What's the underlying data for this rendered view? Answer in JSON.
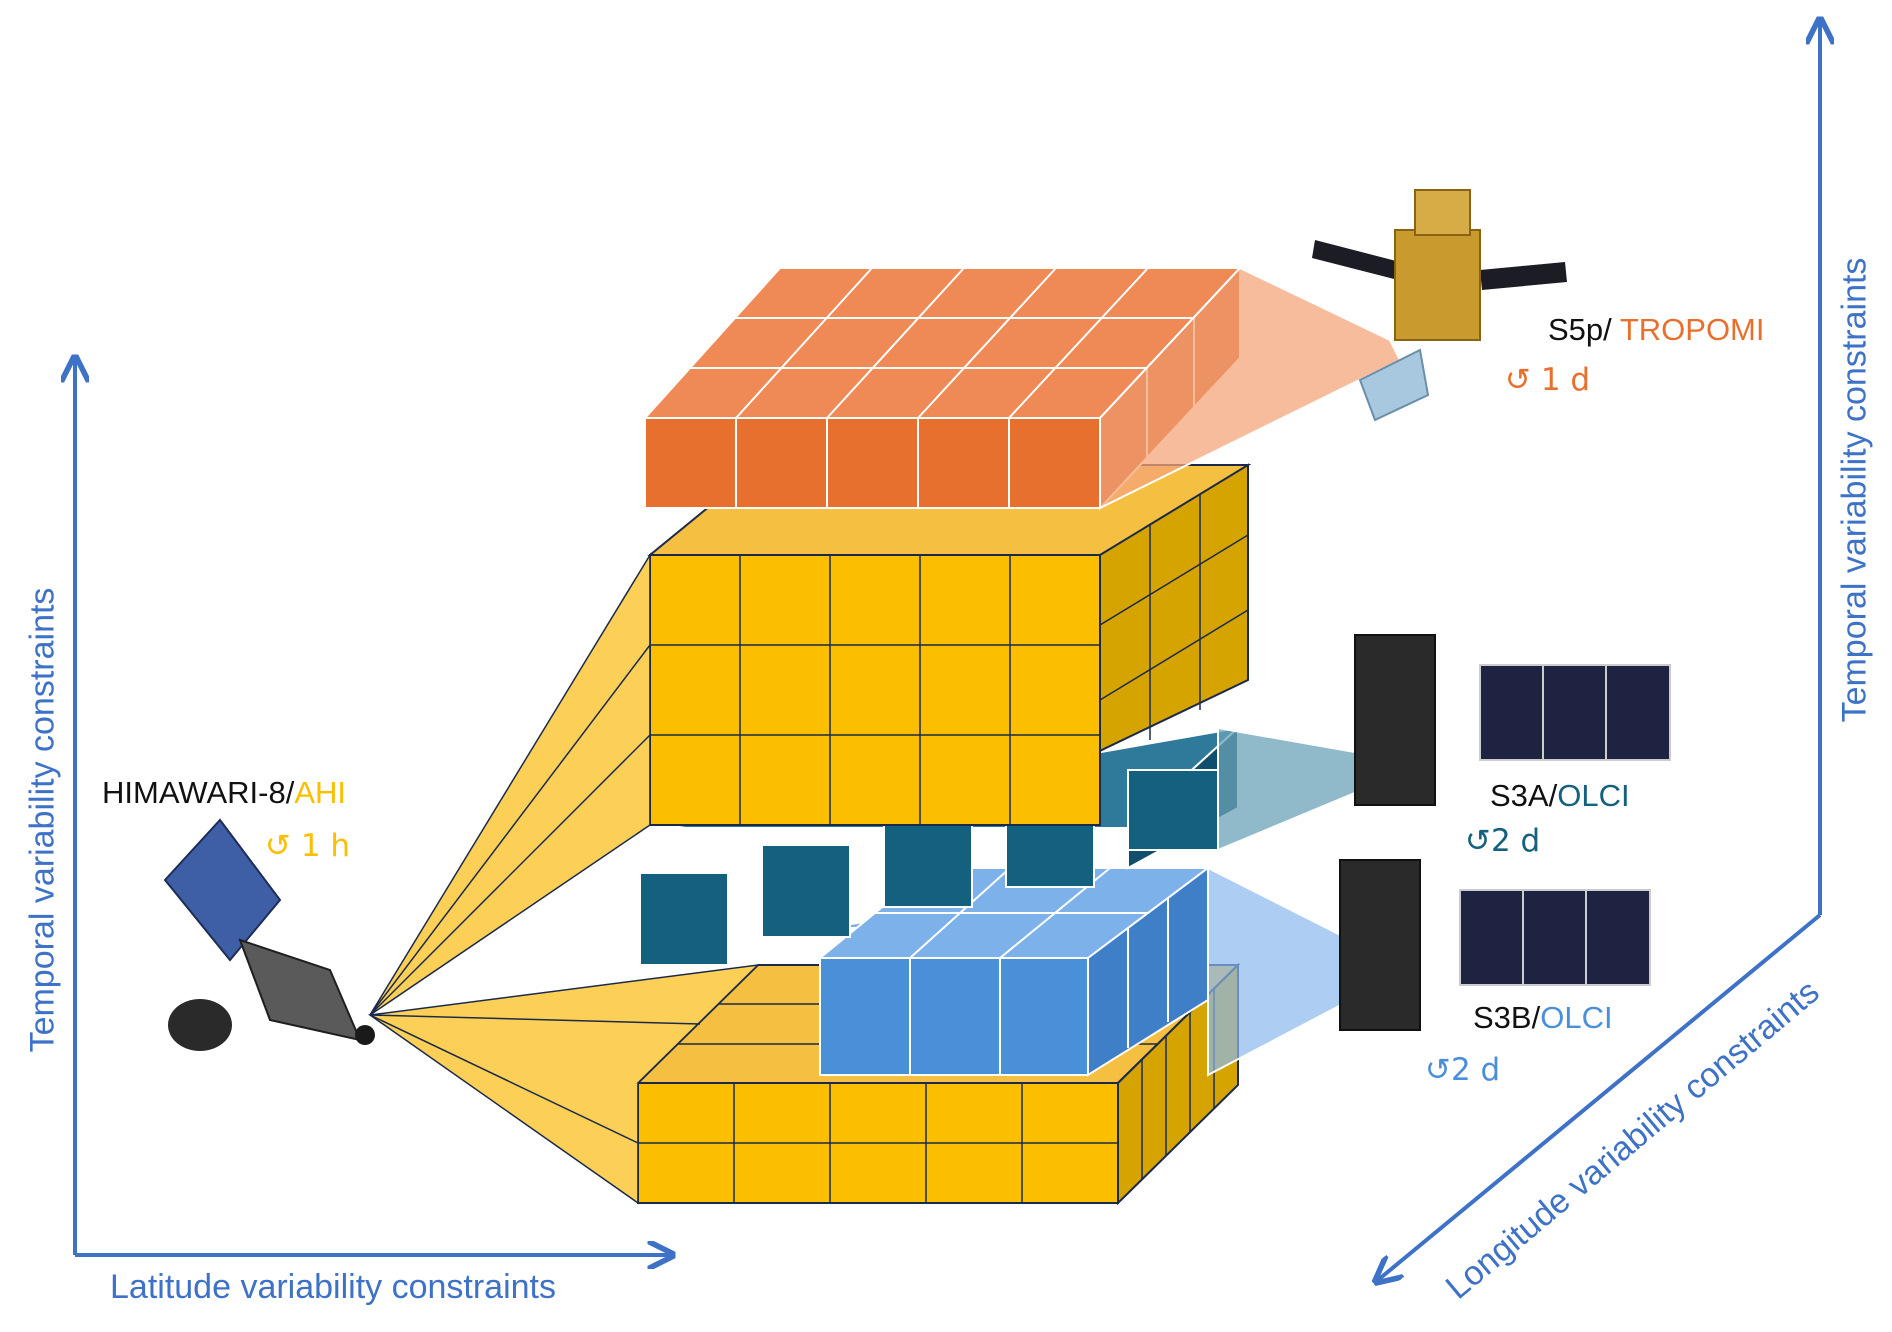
{
  "colors": {
    "axis": "#3e72c7",
    "tropomi": "#e8702f",
    "ahi": "#fbbe00",
    "olci_s3a": "#14607f",
    "olci_s3b": "#4a90d9",
    "name_text": "#111111"
  },
  "axes": {
    "vertical_left": "Temporal variability constraints",
    "horizontal": "Latitude variability constraints",
    "vertical_right": "Temporal variability constraints",
    "diagonal": "Longitude variability constraints"
  },
  "sensors": [
    {
      "id": "s5p",
      "platform": "S5p/ ",
      "instrument": "TROPOMI",
      "revisit": "↺ 1 d",
      "icon": "sentinel-5p-satellite-icon"
    },
    {
      "id": "himawari",
      "platform": "HIMAWARI-8/",
      "instrument": "AHI",
      "revisit": "↺ 1 h",
      "icon": "himawari-satellite-icon"
    },
    {
      "id": "s3a",
      "platform": "S3A/",
      "instrument": "OLCI",
      "revisit": "↺2 d",
      "icon": "sentinel-3a-satellite-icon"
    },
    {
      "id": "s3b",
      "platform": "S3B/",
      "instrument": "OLCI",
      "revisit": "↺2 d",
      "icon": "sentinel-3b-satellite-icon"
    }
  ]
}
